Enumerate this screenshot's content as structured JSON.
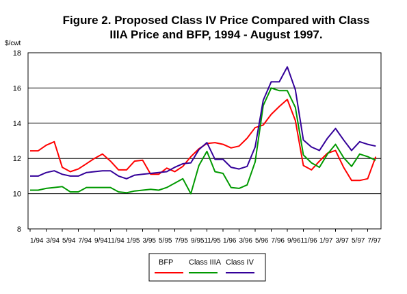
{
  "chart_data": {
    "type": "line",
    "title_line1": "Figure 2.  Proposed Class IV Price Compared with Class",
    "title_line2": "IIIA Price and BFP, 1994 - August 1997.",
    "ylabel": "$/cwt",
    "xlabel": "",
    "ylim": [
      8,
      18
    ],
    "yticks": [
      8,
      10,
      12,
      14,
      16,
      18
    ],
    "grid": true,
    "legend_position": "bottom-center",
    "tick_labels": [
      "1/94",
      "3/94",
      "5/94",
      "7/94",
      "9/94",
      "11/94",
      "1/95",
      "3/95",
      "5/95",
      "7/95",
      "9/95",
      "11/95",
      "1/96",
      "3/96",
      "5/96",
      "7/96",
      "9/96",
      "11/96",
      "1/97",
      "3/97",
      "5/97",
      "7/97"
    ],
    "tick_label_pairs": [
      [
        "1/94"
      ],
      [
        "3/94"
      ],
      [
        "5/94"
      ],
      [
        "7/94"
      ],
      [
        "9/94",
        "11/94"
      ],
      [
        "1/95"
      ],
      [
        "3/95"
      ],
      [
        "5/95"
      ],
      [
        "7/95"
      ],
      [
        "9/95",
        "11/95"
      ],
      [
        "1/96"
      ],
      [
        "3/96"
      ],
      [
        "5/96"
      ],
      [
        "7/96"
      ],
      [
        "9/96",
        "11/96"
      ],
      [
        "1/97"
      ],
      [
        "3/97"
      ],
      [
        "5/97"
      ],
      [
        "7/97"
      ]
    ],
    "x": [
      "1/94",
      "2/94",
      "3/94",
      "4/94",
      "5/94",
      "6/94",
      "7/94",
      "8/94",
      "9/94",
      "10/94",
      "11/94",
      "12/94",
      "1/95",
      "2/95",
      "3/95",
      "4/95",
      "5/95",
      "6/95",
      "7/95",
      "8/95",
      "9/95",
      "10/95",
      "11/95",
      "12/95",
      "1/96",
      "2/96",
      "3/96",
      "4/96",
      "5/96",
      "6/96",
      "7/96",
      "8/96",
      "9/96",
      "10/96",
      "11/96",
      "12/96",
      "1/97",
      "2/97",
      "3/97",
      "4/97",
      "5/97",
      "6/97",
      "7/97",
      "8/97"
    ],
    "series": [
      {
        "name": "BFP",
        "color": "#ff0000",
        "values": [
          12.43,
          12.43,
          12.75,
          12.95,
          11.5,
          11.25,
          11.4,
          11.7,
          12.0,
          12.25,
          11.85,
          11.35,
          11.35,
          11.85,
          11.9,
          11.1,
          11.1,
          11.45,
          11.25,
          11.55,
          12.1,
          12.55,
          12.85,
          12.9,
          12.8,
          12.6,
          12.7,
          13.15,
          13.75,
          13.9,
          14.5,
          14.95,
          15.35,
          14.15,
          11.6,
          11.35,
          11.85,
          12.3,
          12.45,
          11.5,
          10.75,
          10.75,
          10.85,
          12.1
        ]
      },
      {
        "name": "Class IIIA",
        "color": "#009900",
        "values": [
          10.2,
          10.2,
          10.3,
          10.35,
          10.4,
          10.1,
          10.1,
          10.35,
          10.35,
          10.35,
          10.35,
          10.1,
          10.05,
          10.15,
          10.2,
          10.25,
          10.2,
          10.35,
          10.6,
          10.85,
          10.0,
          11.6,
          12.4,
          11.25,
          11.15,
          10.35,
          10.3,
          10.5,
          11.8,
          15.0,
          16.0,
          15.85,
          15.85,
          14.9,
          12.2,
          11.75,
          11.5,
          12.25,
          12.8,
          12.05,
          11.55,
          12.25,
          12.1,
          11.9
        ]
      },
      {
        "name": "Class IV",
        "color": "#330099",
        "values": [
          11.0,
          11.0,
          11.2,
          11.3,
          11.1,
          11.0,
          11.0,
          11.2,
          11.25,
          11.3,
          11.3,
          11.0,
          10.85,
          11.05,
          11.1,
          11.15,
          11.2,
          11.25,
          11.5,
          11.7,
          11.75,
          12.5,
          12.9,
          11.95,
          11.95,
          11.5,
          11.4,
          11.55,
          12.65,
          15.3,
          16.35,
          16.35,
          17.2,
          15.9,
          13.05,
          12.65,
          12.45,
          13.15,
          13.7,
          13.05,
          12.45,
          12.95,
          12.8,
          12.7
        ]
      }
    ]
  }
}
